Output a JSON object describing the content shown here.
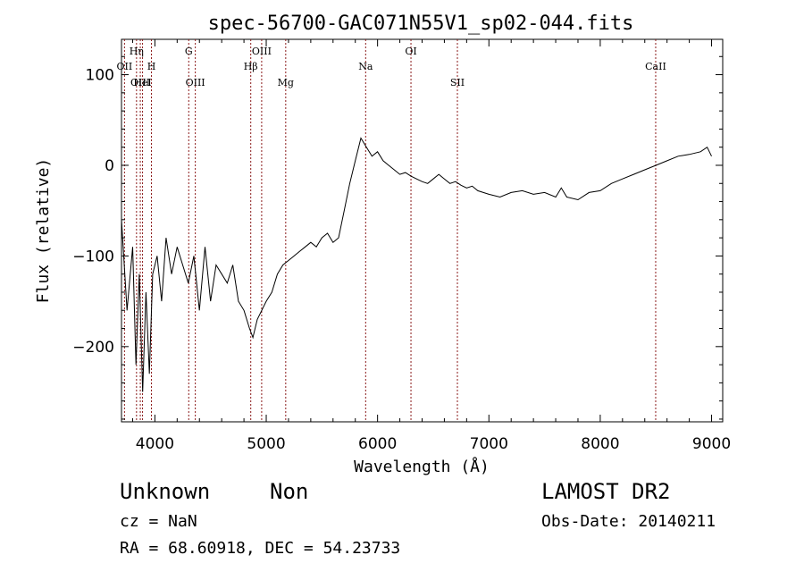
{
  "chart_data": {
    "type": "line",
    "title": "spec-56700-GAC071N55V1_sp02-044.fits",
    "xlabel": "Wavelength (Å)",
    "ylabel": "Flux (relative)",
    "xlim": [
      3700,
      9100
    ],
    "ylim": [
      -283,
      139
    ],
    "xticks": [
      4000,
      5000,
      6000,
      7000,
      8000,
      9000
    ],
    "yticks": [
      100,
      0,
      -100,
      -200
    ],
    "grid": false,
    "line_color": "#000000",
    "marker_color": "#8b1a1a",
    "lines": [
      {
        "name": "OII",
        "wavelength": 3727,
        "row": 1
      },
      {
        "name": "Hη",
        "wavelength": 3835,
        "row": 0
      },
      {
        "name": "OIII",
        "wavelength": 3869,
        "row": 2
      },
      {
        "name": "H",
        "wavelength": 3969,
        "row": 1
      },
      {
        "name": "HeI",
        "wavelength": 3889,
        "row": 2
      },
      {
        "name": "G",
        "wavelength": 4304,
        "row": 0
      },
      {
        "name": "OIII",
        "wavelength": 4363,
        "row": 2
      },
      {
        "name": "Hβ",
        "wavelength": 4861,
        "row": 1
      },
      {
        "name": "OIII",
        "wavelength": 4959,
        "row": 0
      },
      {
        "name": "Mg",
        "wavelength": 5175,
        "row": 2
      },
      {
        "name": "Na",
        "wavelength": 5893,
        "row": 1
      },
      {
        "name": "OI",
        "wavelength": 6300,
        "row": 0
      },
      {
        "name": "SII",
        "wavelength": 6717,
        "row": 2
      },
      {
        "name": "CaII",
        "wavelength": 8498,
        "row": 1
      }
    ],
    "series": [
      {
        "x": [
          3700,
          3750,
          3800,
          3830,
          3860,
          3890,
          3920,
          3950,
          3980,
          4020,
          4060,
          4100,
          4150,
          4200,
          4250,
          4300,
          4350,
          4400,
          4450,
          4500,
          4550,
          4600,
          4650,
          4700,
          4750,
          4800,
          4850,
          4880,
          4920,
          4960,
          5000,
          5050,
          5100,
          5150,
          5200,
          5250,
          5300,
          5350,
          5400,
          5450,
          5500,
          5550,
          5600,
          5650,
          5700,
          5750,
          5800,
          5850,
          5900,
          5950,
          6000,
          6050,
          6100,
          6150,
          6200,
          6250,
          6300,
          6350,
          6400,
          6450,
          6500,
          6550,
          6600,
          6650,
          6700,
          6750,
          6800,
          6850,
          6900,
          6950,
          7000,
          7100,
          7200,
          7300,
          7400,
          7500,
          7600,
          7650,
          7700,
          7800,
          7900,
          8000,
          8100,
          8200,
          8300,
          8400,
          8500,
          8600,
          8700,
          8800,
          8900,
          8960,
          9000
        ],
        "y": [
          -60,
          -160,
          -90,
          -220,
          -120,
          -250,
          -140,
          -230,
          -120,
          -100,
          -150,
          -80,
          -120,
          -90,
          -110,
          -130,
          -100,
          -160,
          -90,
          -150,
          -110,
          -120,
          -130,
          -110,
          -150,
          -160,
          -180,
          -190,
          -170,
          -160,
          -150,
          -140,
          -120,
          -110,
          -105,
          -100,
          -95,
          -90,
          -85,
          -90,
          -80,
          -75,
          -85,
          -80,
          -50,
          -20,
          5,
          30,
          20,
          10,
          15,
          5,
          0,
          -5,
          -10,
          -8,
          -12,
          -15,
          -18,
          -20,
          -15,
          -10,
          -15,
          -20,
          -18,
          -22,
          -25,
          -23,
          -28,
          -30,
          -32,
          -35,
          -30,
          -28,
          -32,
          -30,
          -35,
          -25,
          -35,
          -38,
          -30,
          -28,
          -20,
          -15,
          -10,
          -5,
          0,
          5,
          10,
          12,
          15,
          20,
          10
        ]
      }
    ],
    "annotations": {
      "object_class": "Unknown",
      "object_subclass": "Non",
      "survey": "LAMOST DR2",
      "redshift": "cz = NaN",
      "obs_date": "Obs-Date: 20140211",
      "coords": "RA =  68.60918, DEC =  54.23733"
    }
  }
}
